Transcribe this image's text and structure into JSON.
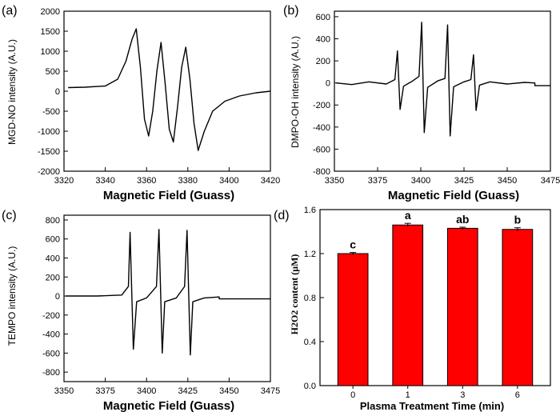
{
  "chart_data": [
    {
      "type": "line",
      "panel_label": "(a)",
      "xlabel": "Magnetic Field (Guass)",
      "ylabel": "MGD-NO intensity (A.U.)",
      "xlim": [
        3320,
        3420
      ],
      "ylim": [
        -2000,
        2000
      ],
      "xticks": [
        3320,
        3340,
        3360,
        3380,
        3400,
        3420
      ],
      "yticks": [
        -2000,
        -1500,
        -1000,
        -500,
        0,
        500,
        1000,
        1500,
        2000
      ],
      "series": [
        {
          "name": "MGD-NO",
          "x": [
            3322,
            3330,
            3340,
            3346,
            3350,
            3353,
            3355,
            3357,
            3359,
            3361,
            3363,
            3365,
            3367,
            3369,
            3371,
            3373,
            3375,
            3377,
            3379,
            3381,
            3383,
            3385,
            3388,
            3392,
            3398,
            3405,
            3413,
            3420
          ],
          "y": [
            90,
            100,
            130,
            300,
            750,
            1300,
            1560,
            600,
            -700,
            -1120,
            -500,
            500,
            1220,
            200,
            -950,
            -1270,
            -400,
            600,
            1100,
            300,
            -800,
            -1480,
            -1000,
            -500,
            -250,
            -120,
            -40,
            0
          ]
        }
      ]
    },
    {
      "type": "line",
      "panel_label": "(b)",
      "xlabel": "Magnetic Field (Guass)",
      "ylabel": "DMPO-OH intensity (A.U.)",
      "xlim": [
        3350,
        3475
      ],
      "ylim": [
        -800,
        650
      ],
      "xticks": [
        3350,
        3375,
        3400,
        3425,
        3450,
        3475
      ],
      "yticks": [
        -800,
        -600,
        -400,
        -200,
        0,
        200,
        400,
        600
      ],
      "series": [
        {
          "name": "DMPO-OH",
          "x": [
            3351,
            3360,
            3370,
            3380,
            3385,
            3386.5,
            3388,
            3390,
            3395,
            3399,
            3400.5,
            3402,
            3404,
            3410,
            3414,
            3415.5,
            3417,
            3419,
            3425,
            3429,
            3430.5,
            3432,
            3434,
            3440,
            3450,
            3460,
            3466,
            3466,
            3475
          ],
          "y": [
            0,
            -15,
            10,
            -10,
            30,
            290,
            -240,
            -30,
            15,
            60,
            550,
            -450,
            -40,
            20,
            40,
            525,
            -480,
            -35,
            10,
            30,
            255,
            -250,
            -20,
            10,
            -10,
            5,
            0,
            -25,
            -25
          ]
        }
      ]
    },
    {
      "type": "line",
      "panel_label": "(c)",
      "xlabel": "Magnetic Field (Guass)",
      "ylabel": "TEMPO intensity (A.U.)",
      "xlim": [
        3350,
        3475
      ],
      "ylim": [
        -900,
        850
      ],
      "xticks": [
        3350,
        3375,
        3400,
        3425,
        3450,
        3475
      ],
      "yticks": [
        -800,
        -600,
        -400,
        -200,
        0,
        200,
        400,
        600,
        800
      ],
      "series": [
        {
          "name": "TEMPO",
          "x": [
            3351,
            3370,
            3385,
            3389,
            3390,
            3392,
            3394,
            3400,
            3406,
            3407.5,
            3409.5,
            3411,
            3418,
            3423,
            3424.5,
            3426.5,
            3428,
            3435,
            3444,
            3444,
            3475
          ],
          "y": [
            0,
            0,
            10,
            100,
            670,
            -560,
            -60,
            -20,
            100,
            700,
            -600,
            -60,
            -20,
            100,
            690,
            -620,
            -60,
            -20,
            -10,
            -30,
            -30
          ]
        }
      ]
    },
    {
      "type": "bar",
      "panel_label": "(d)",
      "xlabel": "Plasma Treatment Time (min)",
      "ylabel": "H2O2 content (μM)",
      "categories": [
        "0",
        "1",
        "3",
        "6"
      ],
      "values": [
        1.2,
        1.46,
        1.43,
        1.42
      ],
      "errors": [
        0.01,
        0.015,
        0.01,
        0.015
      ],
      "significance": [
        "c",
        "a",
        "ab",
        "b"
      ],
      "ylim": [
        0.0,
        1.6
      ],
      "yticks": [
        0.0,
        0.4,
        0.8,
        1.2,
        1.6
      ],
      "bar_color": "#ff0000"
    }
  ],
  "colors": {
    "line": "#000000",
    "bar": "#ff0000",
    "axis": "#000000"
  }
}
